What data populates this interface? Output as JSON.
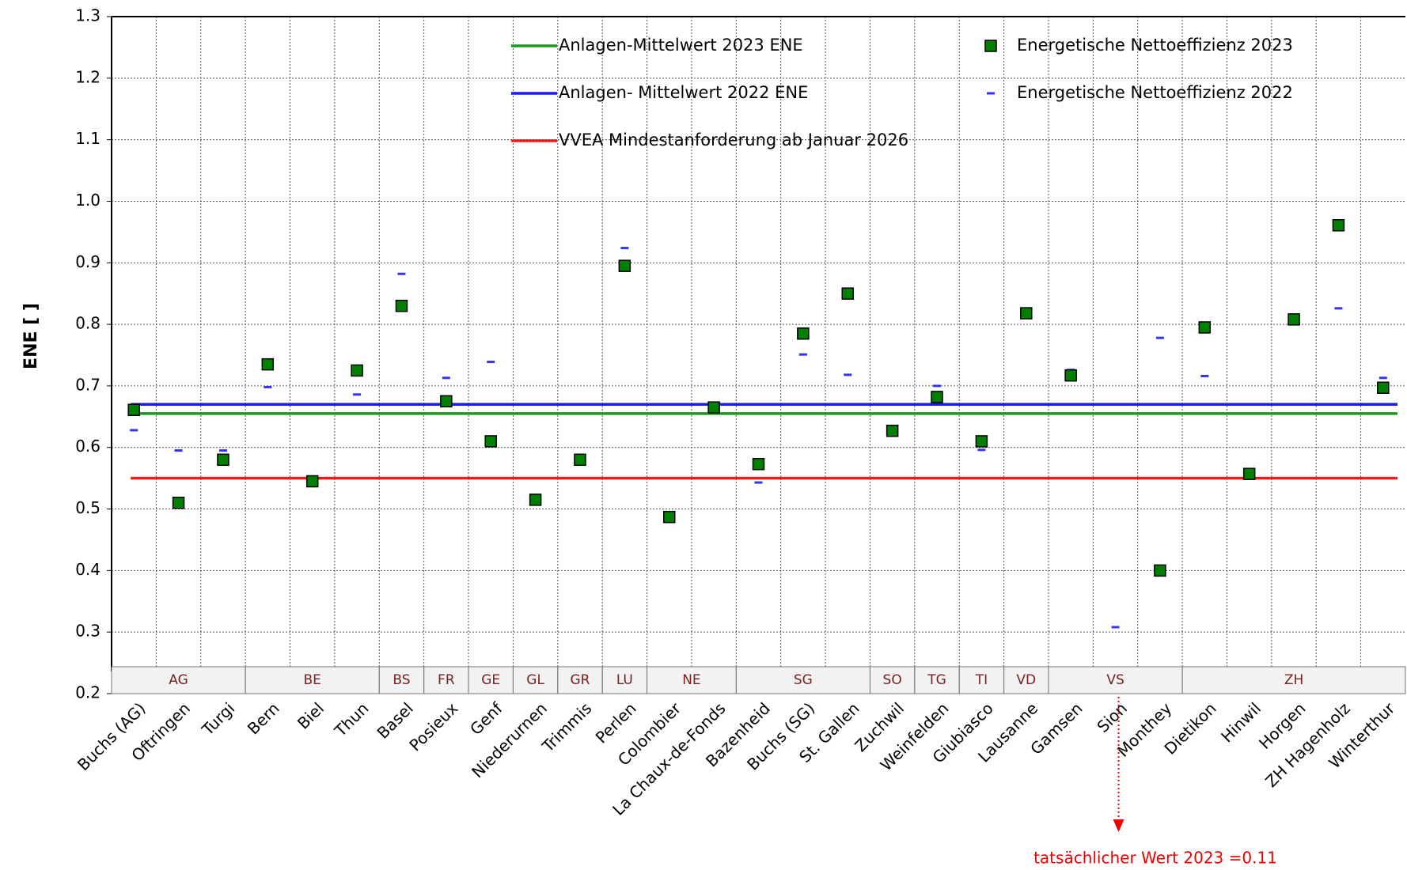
{
  "chart_data": {
    "type": "scatter",
    "y_label": "ENE [ ]",
    "categories": [
      "Buchs (AG)",
      "Oftringen",
      "Turgi",
      "Bern",
      "Biel",
      "Thun",
      "Basel",
      "Posieux",
      "Genf",
      "Niederurnen",
      "Trimmis",
      "Perlen",
      "Colombier",
      "La Chaux-de-Fonds",
      "Bazenheid",
      "Buchs (SG)",
      "St. Gallen",
      "Zuchwil",
      "Weinfelden",
      "Giubiasco",
      "Lausanne",
      "Gamsen",
      "Sion",
      "Monthey",
      "Dietikon",
      "Hinwil",
      "Horgen",
      "ZH Hagenholz",
      "Winterthur"
    ],
    "groups": [
      {
        "label": "AG",
        "span": 3
      },
      {
        "label": "BE",
        "span": 3
      },
      {
        "label": "BS",
        "span": 1
      },
      {
        "label": "FR",
        "span": 1
      },
      {
        "label": "GE",
        "span": 1
      },
      {
        "label": "GL",
        "span": 1
      },
      {
        "label": "GR",
        "span": 1
      },
      {
        "label": "LU",
        "span": 1
      },
      {
        "label": "NE",
        "span": 2
      },
      {
        "label": "SG",
        "span": 3
      },
      {
        "label": "SO",
        "span": 1
      },
      {
        "label": "TG",
        "span": 1
      },
      {
        "label": "TI",
        "span": 1
      },
      {
        "label": "VD",
        "span": 1
      },
      {
        "label": "VS",
        "span": 3
      },
      {
        "label": "ZH",
        "span": 5
      }
    ],
    "series": [
      {
        "name": "Energetische Nettoeffizienz 2023",
        "color": "#008000",
        "marker": "square",
        "values": [
          0.661,
          0.51,
          0.58,
          0.735,
          0.545,
          0.725,
          0.83,
          0.675,
          0.61,
          0.515,
          0.58,
          0.895,
          0.487,
          0.665,
          0.573,
          0.785,
          0.85,
          0.627,
          0.682,
          0.61,
          0.818,
          0.717,
          null,
          0.4,
          0.795,
          0.557,
          0.808,
          0.961,
          0.697
        ]
      },
      {
        "name": "Energetische Nettoeffizienz 2022",
        "color": "#3333ff",
        "marker": "dash",
        "values": [
          0.628,
          0.595,
          0.595,
          0.698,
          0.54,
          0.686,
          0.882,
          0.713,
          0.739,
          0.52,
          0.583,
          0.924,
          0.491,
          0.67,
          0.543,
          0.751,
          0.718,
          0.624,
          0.7,
          0.596,
          0.817,
          0.726,
          0.308,
          0.778,
          0.716,
          0.56,
          0.805,
          0.826,
          0.713
        ]
      }
    ],
    "lines": [
      {
        "name": "Anlagen-Mittelwert 2023 ENE",
        "color": "#1a9a1a",
        "value": 0.655
      },
      {
        "name": "Anlagen- Mittelwert 2022 ENE",
        "color": "#1a1aee",
        "value": 0.67
      },
      {
        "name": "VVEA Mindestanforderung ab Januar 2026",
        "color": "#ee1a1a",
        "value": 0.55
      }
    ],
    "annotation": "tatsächlicher Wert  2023 =0.11",
    "ylim": [
      0.2,
      1.3
    ],
    "yticks": [
      0.2,
      0.3,
      0.4,
      0.5,
      0.6,
      0.7,
      0.8,
      0.9,
      {
        "value": 1,
        "label": "1.0"
      },
      1.1,
      1.2,
      1.3
    ],
    "grid": true
  }
}
